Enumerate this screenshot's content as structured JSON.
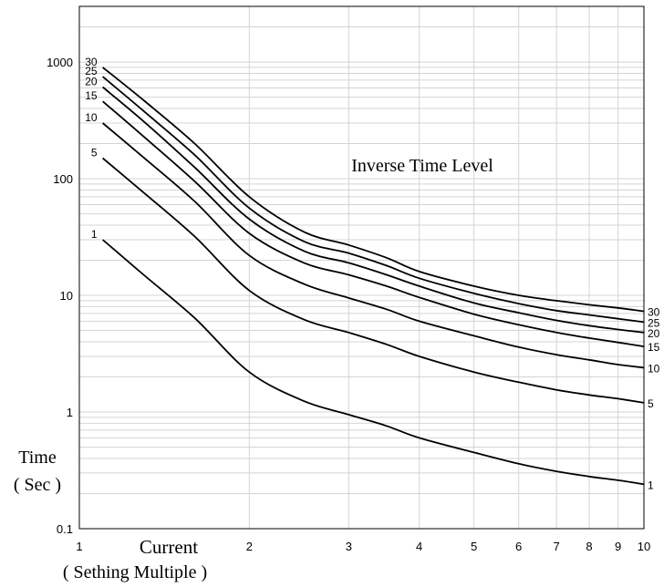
{
  "chart_data": {
    "type": "line",
    "title": "Inverse Time Level",
    "ylabel": [
      "Time",
      "( Sec )"
    ],
    "xlabel": [
      "Current",
      "( Sething Multiple )"
    ],
    "x_scale": "log",
    "y_scale": "log",
    "xlim": [
      1,
      10
    ],
    "ylim": [
      0.1,
      3000
    ],
    "grid": true,
    "x_ticks": [
      1,
      2,
      3,
      4,
      5,
      6,
      7,
      8,
      9,
      10
    ],
    "x_tick_labels": [
      "1",
      "2",
      "3",
      "4",
      "5",
      "6",
      "7",
      "8",
      "9",
      "10"
    ],
    "y_ticks": [
      0.1,
      1,
      10,
      100,
      1000
    ],
    "y_tick_labels": [
      "0.1",
      "1",
      "10",
      "100",
      "1000"
    ],
    "series": [
      {
        "name": "30",
        "x": [
          1.1,
          1.3,
          1.6,
          2.0,
          2.5,
          3.0,
          3.5,
          4.0,
          5.0,
          6.0,
          7.0,
          8.0,
          9.0,
          10.0
        ],
        "y": [
          900,
          470,
          200,
          70,
          35,
          27,
          21,
          16,
          12,
          10,
          9,
          8.3,
          7.8,
          7.3
        ]
      },
      {
        "name": "25",
        "x": [
          1.1,
          1.3,
          1.6,
          2.0,
          2.5,
          3.0,
          3.5,
          4.0,
          5.0,
          6.0,
          7.0,
          8.0,
          9.0,
          10.0
        ],
        "y": [
          750,
          380,
          160,
          56,
          29,
          23,
          18,
          14,
          10.4,
          8.5,
          7.4,
          6.8,
          6.3,
          5.9
        ]
      },
      {
        "name": "20",
        "x": [
          1.1,
          1.3,
          1.6,
          2.0,
          2.5,
          3.0,
          3.5,
          4.0,
          5.0,
          6.0,
          7.0,
          8.0,
          9.0,
          10.0
        ],
        "y": [
          610,
          310,
          125,
          45,
          24,
          19,
          15,
          12,
          8.6,
          7.1,
          6.1,
          5.5,
          5.1,
          4.8
        ]
      },
      {
        "name": "15",
        "x": [
          1.1,
          1.3,
          1.6,
          2.0,
          2.5,
          3.0,
          3.5,
          4.0,
          5.0,
          6.0,
          7.0,
          8.0,
          9.0,
          10.0
        ],
        "y": [
          460,
          230,
          95,
          34,
          19,
          15,
          12,
          9.6,
          6.9,
          5.6,
          4.8,
          4.3,
          3.95,
          3.65
        ]
      },
      {
        "name": "10",
        "x": [
          1.1,
          1.3,
          1.6,
          2.0,
          2.5,
          3.0,
          3.5,
          4.0,
          5.0,
          6.0,
          7.0,
          8.0,
          9.0,
          10.0
        ],
        "y": [
          300,
          152,
          64,
          22,
          12.5,
          9.5,
          7.6,
          6.0,
          4.5,
          3.6,
          3.1,
          2.8,
          2.55,
          2.4
        ]
      },
      {
        "name": "5",
        "x": [
          1.1,
          1.3,
          1.6,
          2.0,
          2.5,
          3.0,
          3.5,
          4.0,
          5.0,
          6.0,
          7.0,
          8.0,
          9.0,
          10.0
        ],
        "y": [
          150,
          76,
          32,
          11,
          6.2,
          4.8,
          3.8,
          3.0,
          2.2,
          1.8,
          1.55,
          1.4,
          1.3,
          1.2
        ]
      },
      {
        "name": "1",
        "x": [
          1.1,
          1.3,
          1.6,
          2.0,
          2.5,
          3.0,
          3.5,
          4.0,
          5.0,
          6.0,
          7.0,
          8.0,
          9.0,
          10.0
        ],
        "y": [
          30,
          15,
          6.4,
          2.2,
          1.24,
          0.95,
          0.76,
          0.6,
          0.45,
          0.36,
          0.31,
          0.28,
          0.26,
          0.24
        ]
      }
    ]
  }
}
